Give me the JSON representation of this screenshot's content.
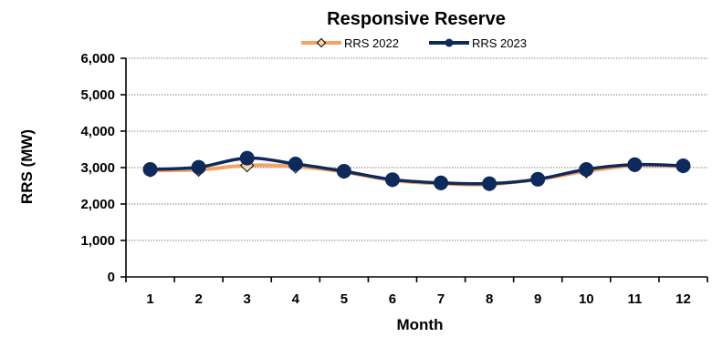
{
  "chart_data": {
    "type": "line",
    "title": "Responsive Reserve",
    "xlabel": "Month",
    "ylabel": "RRS (MW)",
    "categories": [
      "1",
      "2",
      "3",
      "4",
      "5",
      "6",
      "7",
      "8",
      "9",
      "10",
      "11",
      "12"
    ],
    "ylim": [
      0,
      6000
    ],
    "yticks": [
      "0",
      "1,000",
      "2,000",
      "3,000",
      "4,000",
      "5,000",
      "6,000"
    ],
    "ytick_values": [
      0,
      1000,
      2000,
      3000,
      4000,
      5000,
      6000
    ],
    "grid": true,
    "legend_position": "top",
    "series": [
      {
        "name": "RRS 2022",
        "color": "#F4A460",
        "marker": "diamond",
        "values": [
          2920,
          2940,
          3060,
          3030,
          2880,
          2650,
          2560,
          2540,
          2680,
          2900,
          3060,
          3030
        ]
      },
      {
        "name": "RRS 2023",
        "color": "#0E2A5C",
        "marker": "circle",
        "values": [
          2950,
          3010,
          3260,
          3100,
          2900,
          2670,
          2580,
          2560,
          2680,
          2950,
          3080,
          3050
        ]
      }
    ]
  }
}
